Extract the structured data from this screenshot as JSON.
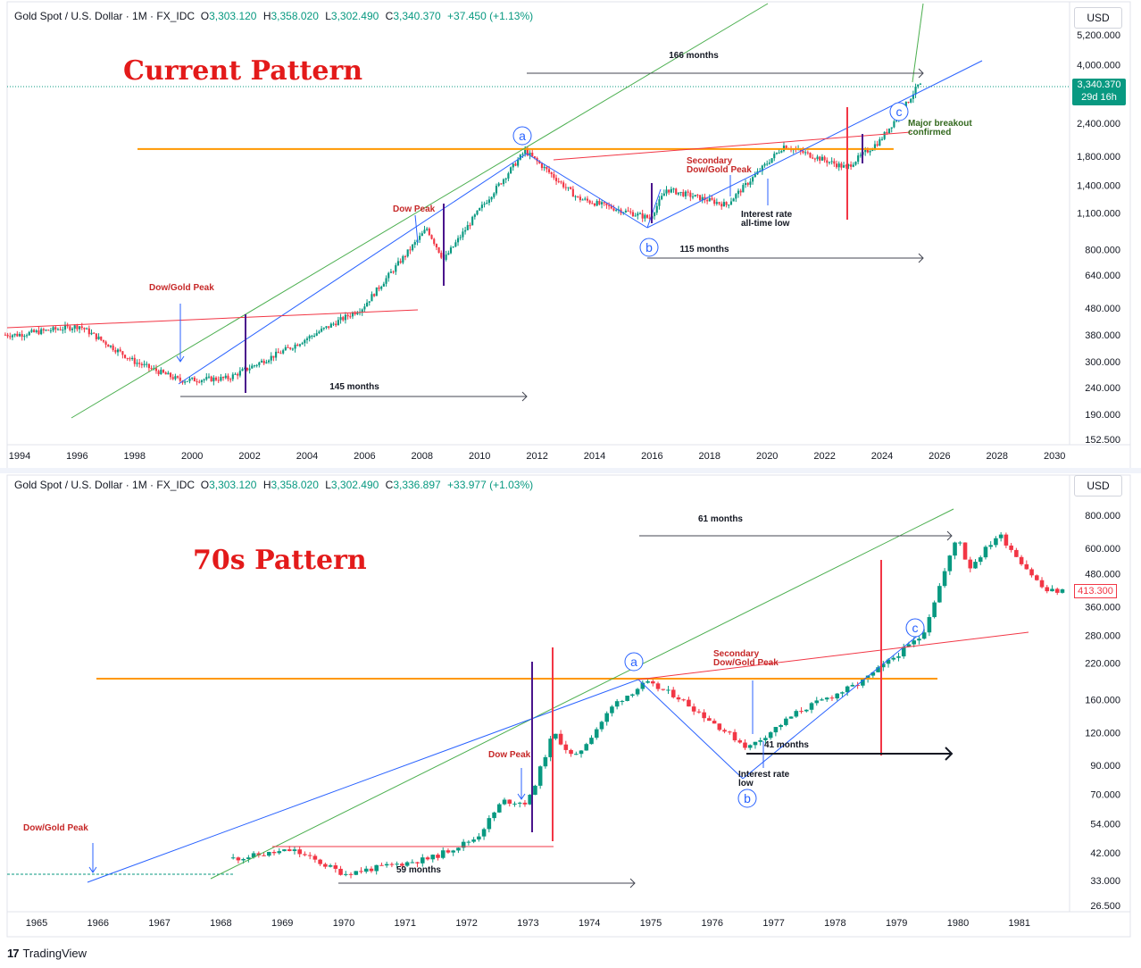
{
  "app": {
    "brand": "TradingView"
  },
  "panels": [
    {
      "header": {
        "symbol": "Gold Spot / U.S. Dollar · 1M · FX_IDC",
        "o": "3,303.120",
        "h": "3,358.020",
        "l": "3,302.490",
        "c": "3,340.370",
        "change": "+37.450 (+1.13%)"
      },
      "currency": "USD",
      "title": "Current Pattern",
      "price_badge": {
        "price": "3,340.370",
        "countdown": "29d 16h"
      }
    },
    {
      "header": {
        "symbol": "Gold Spot / U.S. Dollar · 1M · FX_IDC",
        "o": "3,303.120",
        "h": "3,358.020",
        "l": "3,302.490",
        "c": "3,336.897",
        "change": "+33.977 (+1.03%)"
      },
      "currency": "USD",
      "title": "70s Pattern",
      "price_badge": {
        "price": "413.300"
      }
    }
  ],
  "colors": {
    "up": "#089981",
    "down": "#f23645",
    "green_line": "#4caf50",
    "blue_line": "#2962ff",
    "red_line": "#f23645",
    "orange_line": "#ff9800",
    "purple_line": "#4a148c",
    "annotation_red": "#c62828"
  },
  "chart_data": [
    {
      "type": "candlestick",
      "title": "Current Pattern",
      "y_scale": "log",
      "y_ticks": [
        "5,200.000",
        "4,000.000",
        "2,400.000",
        "1,800.000",
        "1,400.000",
        "1,100.000",
        "800.000",
        "640.000",
        "480.000",
        "380.000",
        "300.000",
        "240.000",
        "190.000",
        "152.500"
      ],
      "x_ticks": [
        "1994",
        "1996",
        "1998",
        "2000",
        "2002",
        "2004",
        "2006",
        "2008",
        "2010",
        "2012",
        "2014",
        "2016",
        "2018",
        "2020",
        "2022",
        "2024",
        "2026",
        "2028",
        "2030"
      ],
      "annotations": [
        {
          "text": "166 months",
          "kind": "duration"
        },
        {
          "text": "145 months",
          "kind": "duration"
        },
        {
          "text": "115 months",
          "kind": "duration"
        },
        {
          "text": "Dow/Gold Peak",
          "kind": "event"
        },
        {
          "text": "Dow Peak",
          "kind": "event"
        },
        {
          "text": "Secondary",
          "kind": "event"
        },
        {
          "text": "Dow/Gold Peak",
          "kind": "event"
        },
        {
          "text": "Interest rate",
          "kind": "note"
        },
        {
          "text": "all-time low",
          "kind": "note"
        },
        {
          "text": "Major breakout",
          "kind": "note"
        },
        {
          "text": "confirmed",
          "kind": "note"
        },
        {
          "text": "a",
          "kind": "wave"
        },
        {
          "text": "b",
          "kind": "wave"
        },
        {
          "text": "c",
          "kind": "wave"
        }
      ],
      "key_points": [
        {
          "x": "1993-12",
          "y": 380
        },
        {
          "x": "1996-02",
          "y": 410
        },
        {
          "x": "1998-01",
          "y": 300
        },
        {
          "x": "1999-08",
          "y": 255
        },
        {
          "x": "2001-04",
          "y": 260
        },
        {
          "x": "2003-06",
          "y": 340
        },
        {
          "x": "2005-12",
          "y": 480
        },
        {
          "x": "2008-03",
          "y": 960
        },
        {
          "x": "2008-10",
          "y": 730
        },
        {
          "x": "2009-12",
          "y": 1100
        },
        {
          "x": "2011-08",
          "y": 1890
        },
        {
          "x": "2013-06",
          "y": 1250
        },
        {
          "x": "2015-12",
          "y": 1050
        },
        {
          "x": "2016-07",
          "y": 1350
        },
        {
          "x": "2018-08",
          "y": 1180
        },
        {
          "x": "2020-08",
          "y": 1975
        },
        {
          "x": "2022-10",
          "y": 1630
        },
        {
          "x": "2023-12",
          "y": 2060
        },
        {
          "x": "2024-10",
          "y": 2740
        },
        {
          "x": "2025-04",
          "y": 3340
        }
      ],
      "levels": [
        {
          "name": "orange",
          "y": 1920
        }
      ]
    },
    {
      "type": "candlestick",
      "title": "70s Pattern",
      "y_scale": "log",
      "y_ticks": [
        "800.000",
        "600.000",
        "480.000",
        "360.000",
        "280.000",
        "220.000",
        "160.000",
        "120.000",
        "90.000",
        "70.000",
        "54.000",
        "42.000",
        "33.000",
        "26.500"
      ],
      "x_ticks": [
        "1965",
        "1966",
        "1967",
        "1968",
        "1969",
        "1970",
        "1971",
        "1972",
        "1973",
        "1974",
        "1975",
        "1976",
        "1977",
        "1978",
        "1979",
        "1980",
        "1981"
      ],
      "annotations": [
        {
          "text": "61 months",
          "kind": "duration"
        },
        {
          "text": "59 months",
          "kind": "duration"
        },
        {
          "text": "41 months",
          "kind": "duration"
        },
        {
          "text": "Dow/Gold Peak",
          "kind": "event"
        },
        {
          "text": "Dow Peak",
          "kind": "event"
        },
        {
          "text": "Secondary",
          "kind": "event"
        },
        {
          "text": "Dow/Gold Peak",
          "kind": "event"
        },
        {
          "text": "Interest rate",
          "kind": "note"
        },
        {
          "text": "low",
          "kind": "note"
        },
        {
          "text": "a",
          "kind": "wave"
        },
        {
          "text": "b",
          "kind": "wave"
        },
        {
          "text": "c",
          "kind": "wave"
        }
      ],
      "key_points": [
        {
          "x": "1968-04",
          "y": 40
        },
        {
          "x": "1969-03",
          "y": 43
        },
        {
          "x": "1970-01",
          "y": 35
        },
        {
          "x": "1971-06",
          "y": 40
        },
        {
          "x": "1972-03",
          "y": 48
        },
        {
          "x": "1972-08",
          "y": 66
        },
        {
          "x": "1973-01",
          "y": 65
        },
        {
          "x": "1973-06",
          "y": 120
        },
        {
          "x": "1973-10",
          "y": 95
        },
        {
          "x": "1974-06",
          "y": 155
        },
        {
          "x": "1974-12",
          "y": 185
        },
        {
          "x": "1975-06",
          "y": 165
        },
        {
          "x": "1976-08",
          "y": 105
        },
        {
          "x": "1977-06",
          "y": 145
        },
        {
          "x": "1978-06",
          "y": 185
        },
        {
          "x": "1979-06",
          "y": 280
        },
        {
          "x": "1980-01",
          "y": 680
        },
        {
          "x": "1980-03",
          "y": 500
        },
        {
          "x": "1980-09",
          "y": 680
        },
        {
          "x": "1981-06",
          "y": 413
        }
      ],
      "levels": [
        {
          "name": "orange",
          "y": 190
        }
      ]
    }
  ]
}
